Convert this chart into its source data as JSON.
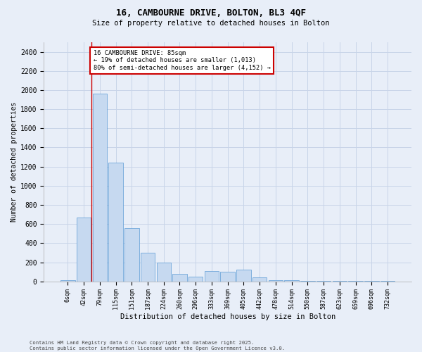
{
  "title1": "16, CAMBOURNE DRIVE, BOLTON, BL3 4QF",
  "title2": "Size of property relative to detached houses in Bolton",
  "xlabel": "Distribution of detached houses by size in Bolton",
  "ylabel": "Number of detached properties",
  "bar_labels": [
    "6sqm",
    "42sqm",
    "79sqm",
    "115sqm",
    "151sqm",
    "187sqm",
    "224sqm",
    "260sqm",
    "296sqm",
    "333sqm",
    "369sqm",
    "405sqm",
    "442sqm",
    "478sqm",
    "514sqm",
    "550sqm",
    "587sqm",
    "623sqm",
    "659sqm",
    "696sqm",
    "732sqm"
  ],
  "bar_values": [
    10,
    670,
    1960,
    1240,
    560,
    300,
    200,
    80,
    50,
    110,
    100,
    120,
    40,
    10,
    10,
    5,
    5,
    2,
    5,
    2,
    2
  ],
  "bar_color": "#c6d9f0",
  "bar_edge_color": "#5b9bd5",
  "grid_color": "#c8d4e8",
  "annotation_text": "16 CAMBOURNE DRIVE: 85sqm\n← 19% of detached houses are smaller (1,013)\n80% of semi-detached houses are larger (4,152) →",
  "annotation_box_edge_color": "#cc0000",
  "vline_color": "#cc0000",
  "ylim": [
    0,
    2500
  ],
  "yticks": [
    0,
    200,
    400,
    600,
    800,
    1000,
    1200,
    1400,
    1600,
    1800,
    2000,
    2200,
    2400
  ],
  "footnote": "Contains HM Land Registry data © Crown copyright and database right 2025.\nContains public sector information licensed under the Open Government Licence v3.0.",
  "background_color": "#e8eef8",
  "plot_bg_color": "#e8eef8"
}
